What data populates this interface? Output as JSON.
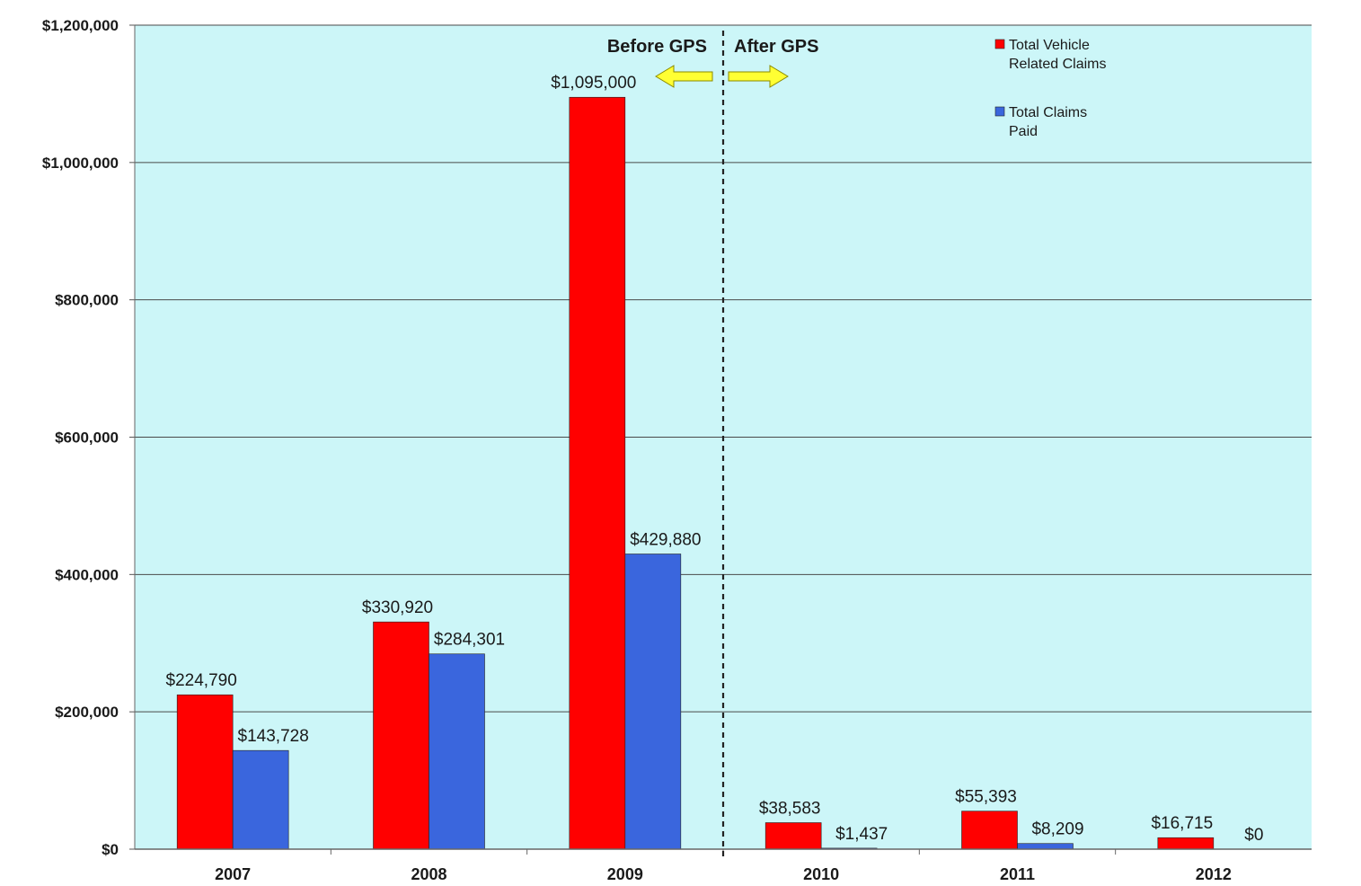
{
  "chart_data": {
    "type": "bar",
    "categories": [
      "2007",
      "2008",
      "2009",
      "2010",
      "2011",
      "2012"
    ],
    "series": [
      {
        "name": "Total Vehicle Related Claims",
        "legend_lines": [
          "Total Vehicle",
          "Related Claims"
        ],
        "color": "#ff0000",
        "values": [
          224790,
          330920,
          1095000,
          38583,
          55393,
          16715
        ],
        "labels": [
          "$224,790",
          "$330,920",
          "$1,095,000",
          "$38,583",
          "$55,393",
          "$16,715"
        ]
      },
      {
        "name": "Total Claims Paid",
        "legend_lines": [
          "Total Claims",
          "Paid"
        ],
        "color": "#3a66dd",
        "values": [
          143728,
          284301,
          429880,
          1437,
          8209,
          0
        ],
        "labels": [
          "$143,728",
          "$284,301",
          "$429,880",
          "$1,437",
          "$8,209",
          "$0"
        ]
      }
    ],
    "yticks": [
      "$0",
      "$200,000",
      "$400,000",
      "$600,000",
      "$800,000",
      "$1,000,000",
      "$1,200,000"
    ],
    "ylim": [
      0,
      1200000
    ],
    "grid": true,
    "legend": "top-right",
    "annotations": {
      "before_label": "Before GPS",
      "after_label": "After GPS",
      "divider_between": [
        "2009",
        "2010"
      ]
    },
    "colors": {
      "plot_background": "#ccf6f8",
      "grid": "#4a4a4a",
      "arrow": "#ffff33"
    }
  }
}
